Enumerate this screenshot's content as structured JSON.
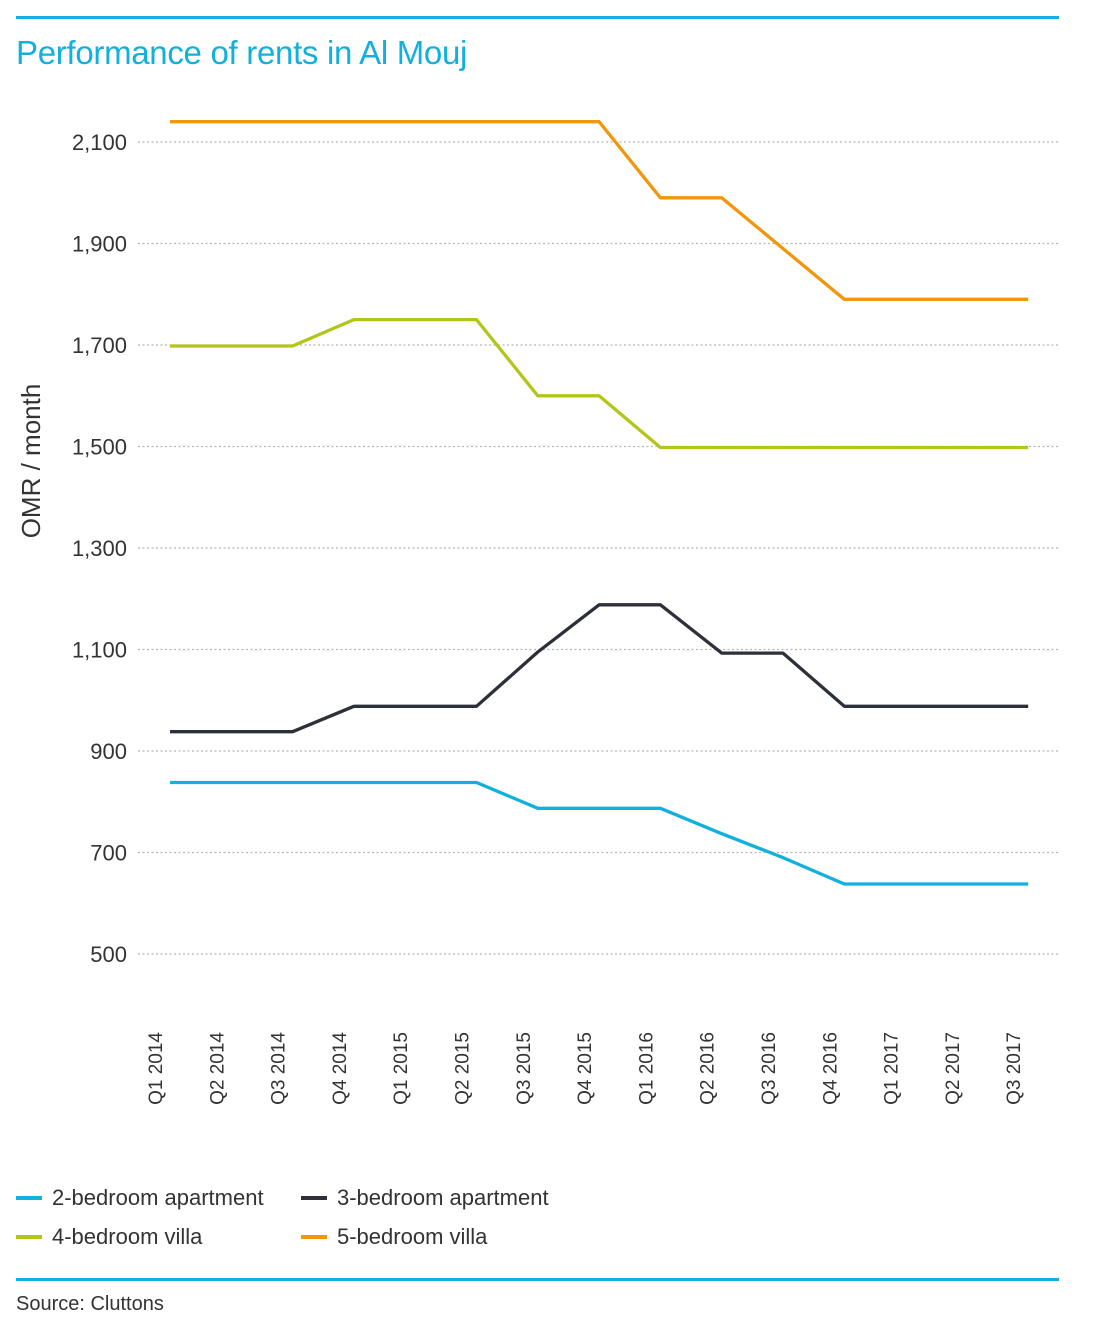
{
  "title": "Performance of rents in Al Mouj",
  "source": "Source: Cluttons",
  "colors": {
    "accent": "#12b0dc",
    "grid": "#b5b5b5",
    "text": "#333333"
  },
  "chart_data": {
    "type": "line",
    "title": "Performance of rents in Al Mouj",
    "xlabel": "",
    "ylabel": "OMR / month",
    "ylim": [
      500,
      2100
    ],
    "yticks": [
      500,
      700,
      900,
      1100,
      1300,
      1500,
      1700,
      1900,
      2100
    ],
    "ytick_labels": [
      "500",
      "700",
      "900",
      "1,100",
      "1,300",
      "1,500",
      "1,700",
      "1,900",
      "2,100"
    ],
    "grid": true,
    "legend_position": "bottom",
    "categories": [
      "Q1 2014",
      "Q2 2014",
      "Q3 2014",
      "Q4 2014",
      "Q1 2015",
      "Q2 2015",
      "Q3 2015",
      "Q4 2015",
      "Q1 2016",
      "Q2 2016",
      "Q3 2016",
      "Q4 2016",
      "Q1 2017",
      "Q2 2017",
      "Q3 2017"
    ],
    "series": [
      {
        "name": "2-bedroom apartment",
        "color": "#12b0dc",
        "values": [
          838,
          838,
          838,
          838,
          838,
          838,
          787,
          787,
          787,
          737,
          690,
          638,
          638,
          638,
          638
        ]
      },
      {
        "name": "3-bedroom apartment",
        "color": "#2d3038",
        "values": [
          938,
          938,
          938,
          988,
          988,
          988,
          1095,
          1188,
          1188,
          1093,
          1093,
          988,
          988,
          988,
          988
        ]
      },
      {
        "name": "4-bedroom villa",
        "color": "#b4c51a",
        "values": [
          1698,
          1698,
          1698,
          1750,
          1750,
          1750,
          1600,
          1600,
          1498,
          1498,
          1498,
          1498,
          1498,
          1498,
          1498
        ]
      },
      {
        "name": "5-bedroom villa",
        "color": "#f2960c",
        "values": [
          2140,
          2140,
          2140,
          2140,
          2140,
          2140,
          2140,
          2140,
          1990,
          1990,
          1890,
          1790,
          1790,
          1790,
          1790
        ]
      }
    ]
  }
}
